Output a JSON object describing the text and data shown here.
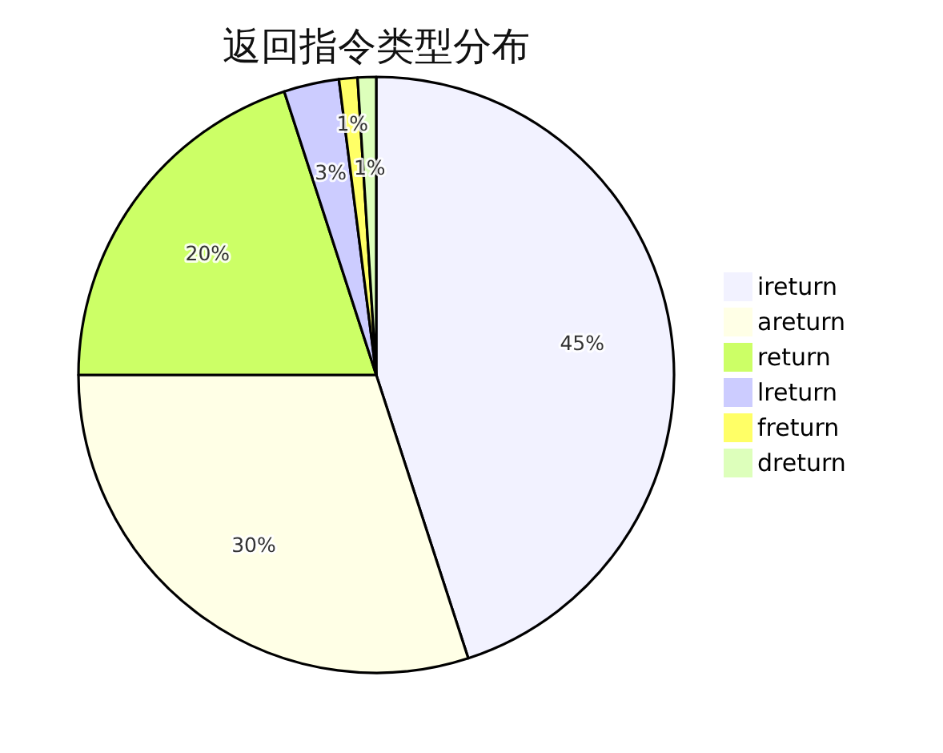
{
  "chart_data": {
    "type": "pie",
    "title": "返回指令类型分布",
    "categories": [
      "ireturn",
      "areturn",
      "return",
      "lreturn",
      "freturn",
      "dreturn"
    ],
    "values": [
      45,
      30,
      20,
      3,
      1,
      1
    ],
    "colors": [
      "#f2f2ff",
      "#ffffe6",
      "#ccff66",
      "#ccccff",
      "#ffff66",
      "#ddffbb"
    ],
    "value_labels": [
      "45%",
      "30%",
      "20%",
      "3%",
      "1%",
      "1%"
    ],
    "legend": "right"
  }
}
